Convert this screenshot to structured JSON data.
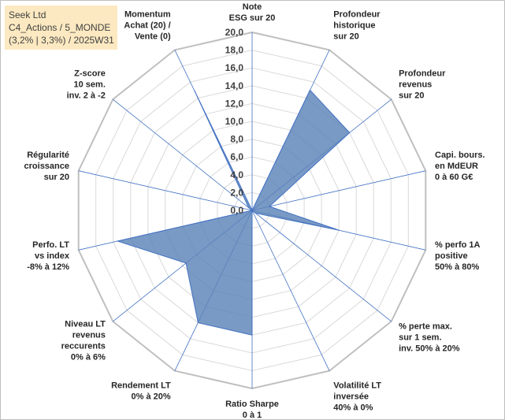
{
  "info_box": {
    "line1": "Seek Ltd",
    "line2": "C4_Actions / 5_MONDE",
    "line3": "(3,2% | 3,3%) / 2025W31"
  },
  "colors": {
    "fill": "#5b84b8",
    "outline": "#4472c4",
    "grid": "#d9d9d9",
    "axis": "#4472c4",
    "info_bg": "#fce9c1"
  },
  "chart_data": {
    "type": "radar",
    "title": "",
    "rlim": [
      0,
      20
    ],
    "tick_labels": [
      "0,0",
      "2,0",
      "4,0",
      "6,0",
      "8,0",
      "10,0",
      "12,0",
      "14,0",
      "16,0",
      "18,0",
      "20,0"
    ],
    "grid": true,
    "categories": [
      [
        "Note",
        "ESG sur 20"
      ],
      [
        "Profondeur",
        "historique",
        "sur 20"
      ],
      [
        "Profondeur",
        "revenus",
        "sur 20"
      ],
      [
        "Capi. bours.",
        "en MdEUR",
        "0 à 60 G€"
      ],
      [
        "% perfo 1A",
        "positive",
        "50% à 80%"
      ],
      [
        "% perte max.",
        "sur 1 sem.",
        "inv. 50% à 20%"
      ],
      [
        "Volatilité LT",
        "inversée",
        "40% à 0%"
      ],
      [
        "Ratio Sharpe",
        "0 à 1"
      ],
      [
        "Rendement LT",
        "0% à 20%"
      ],
      [
        "Niveau LT",
        "revenus",
        "reccurents",
        "0% à 6%"
      ],
      [
        "Perfo. LT",
        "vs index",
        "-8% à 12%"
      ],
      [
        "Régularité",
        "croissance",
        "sur 20"
      ],
      [
        "Z-score",
        "10 sem.",
        "inv. 2 à -2"
      ],
      [
        "Momentum",
        "Achat (20) /",
        "Vente (0)"
      ]
    ],
    "series": [
      {
        "values": [
          0.0,
          15.0,
          14.0,
          2.0,
          10.0,
          0.5,
          0.0,
          14.0,
          14.0,
          9.5,
          15.5,
          0.0,
          0.5,
          15.0
        ]
      }
    ]
  }
}
